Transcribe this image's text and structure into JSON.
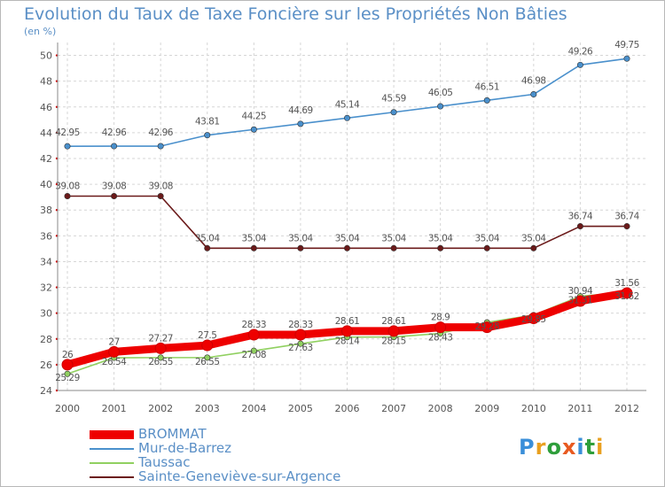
{
  "header": {
    "title": "Evolution du Taux de Taxe Foncière sur les Propriétés Non Bâties",
    "subtitle": "(en %)"
  },
  "brand": {
    "letters": [
      "P",
      "r",
      "o",
      "x",
      "i",
      "t",
      "i"
    ],
    "colors": [
      "#3a8fd9",
      "#e9a020",
      "#2e9e3a",
      "#e85a20",
      "#3a8fd9",
      "#2e9e3a",
      "#e9a020"
    ]
  },
  "chart_data": {
    "type": "line",
    "title": "Evolution du Taux de Taxe Foncière sur les Propriétés Non Bâties",
    "ylabel": "(en %)",
    "xlabel": "",
    "x": [
      "2000",
      "2001",
      "2002",
      "2003",
      "2004",
      "2005",
      "2006",
      "2007",
      "2008",
      "2009",
      "2010",
      "2011",
      "2012"
    ],
    "ylim": [
      24,
      51
    ],
    "yticks": [
      24,
      26,
      28,
      30,
      32,
      34,
      36,
      38,
      40,
      42,
      44,
      46,
      48,
      50
    ],
    "grid": true,
    "legend_position": "bottom-left",
    "series": [
      {
        "name": "BROMMAT",
        "color": "#ee0000",
        "values": [
          26,
          27,
          27.27,
          27.5,
          28.33,
          28.33,
          28.61,
          28.61,
          28.9,
          28.9,
          29.6,
          30.94,
          31.56
        ],
        "labels": [
          "26",
          "27",
          "27.27",
          "27.5",
          "28.33",
          "28.33",
          "28.61",
          "28.61",
          "28.9",
          "",
          "",
          "30.94",
          "31.56"
        ]
      },
      {
        "name": "Mur-de-Barrez",
        "color": "#4a90cc",
        "values": [
          42.95,
          42.96,
          42.96,
          43.81,
          44.25,
          44.69,
          45.14,
          45.59,
          46.05,
          46.51,
          46.98,
          49.26,
          49.75
        ],
        "labels": [
          "42.95",
          "42.96",
          "42.96",
          "43.81",
          "44.25",
          "44.69",
          "45.14",
          "45.59",
          "46.05",
          "46.51",
          "46.98",
          "49.26",
          "49.75"
        ]
      },
      {
        "name": "Taussac",
        "color": "#90d060",
        "values": [
          25.29,
          26.54,
          26.55,
          26.55,
          27.08,
          27.63,
          28.14,
          28.15,
          28.43,
          29.28,
          29.85,
          31.31,
          31.62
        ],
        "labels": [
          "25.29",
          "26.54",
          "26.55",
          "26.55",
          "27.08",
          "27.63",
          "28.14",
          "28.15",
          "28.43",
          "29.28",
          "29.85",
          "31.31",
          "31.62"
        ]
      },
      {
        "name": "Sainte-Geneviève-sur-Argence",
        "color": "#6b1a1a",
        "values": [
          39.08,
          39.08,
          39.08,
          35.04,
          35.04,
          35.04,
          35.04,
          35.04,
          35.04,
          35.04,
          35.04,
          36.74,
          36.74
        ],
        "labels": [
          "39.08",
          "39.08",
          "39.08",
          "35.04",
          "35.04",
          "35.04",
          "35.04",
          "35.04",
          "35.04",
          "35.04",
          "35.04",
          "36.74",
          "36.74"
        ]
      }
    ]
  }
}
